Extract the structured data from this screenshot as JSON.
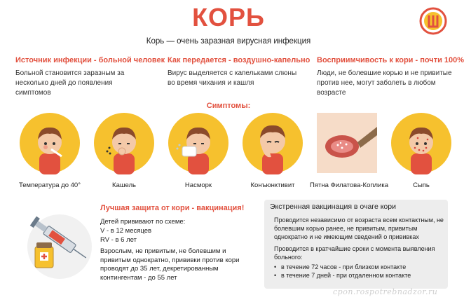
{
  "header": {
    "title": "КОРЬ",
    "subtitle": "Корь — очень заразная вирусная инфекция"
  },
  "info": [
    {
      "title": "Источник инфекции - больной человек",
      "text": "Больной становится заразным за несколько дней до появления симптомов"
    },
    {
      "title": "Как передается - воздушно-капельно",
      "text": "Вирус выделяется с капельками слюны во время чихания и кашля"
    },
    {
      "title": "Восприимчивость к кори - почти 100%",
      "text": "Люди, не болевшие корью и не привитые против нее, могут заболеть в любом возрасте"
    }
  ],
  "symptoms": {
    "title": "Симптомы:",
    "items": [
      {
        "label": "Температура до 40°",
        "icon": "thermometer-child-icon"
      },
      {
        "label": "Кашель",
        "icon": "coughing-child-icon"
      },
      {
        "label": "Насморк",
        "icon": "runny-nose-child-icon"
      },
      {
        "label": "Конъюнктивит",
        "icon": "conjunctivitis-child-icon"
      },
      {
        "label": "Пятна Филатова-Коплика",
        "icon": "mouth-spots-icon"
      },
      {
        "label": "Сыпь",
        "icon": "rash-child-icon"
      }
    ]
  },
  "vaccination": {
    "title": "Лучшая защита от кори - вакцинация!",
    "schedule_intro": "Детей прививают по схеме:",
    "schedule_v": "V - в 12 месяцев",
    "schedule_rv": "RV - в 6 лет",
    "adults": "Взрослым, не привитым, не болевшим и привитым однократно, прививки против кори проводят до 35 лет, декретированным контингентам - до 55 лет"
  },
  "emergency": {
    "title": "Экстренная вакцинация в очаге кори",
    "text1": "Проводится независимо от возраста всем контактным, не болевшим корью ранее, не привитым, привитым однократно и не имеющим сведений о прививках",
    "text2": "Проводится в кратчайшие сроки с момента выявления больного:",
    "bullets": [
      "в течение 72 часов - при близком контакте",
      "в течение 7 дней - при отдаленном контакте"
    ]
  },
  "watermark": "cpon.rospotrebnadzor.ru",
  "colors": {
    "accent": "#e2513f",
    "circle": "#f6c12e",
    "panel": "#ededed"
  }
}
